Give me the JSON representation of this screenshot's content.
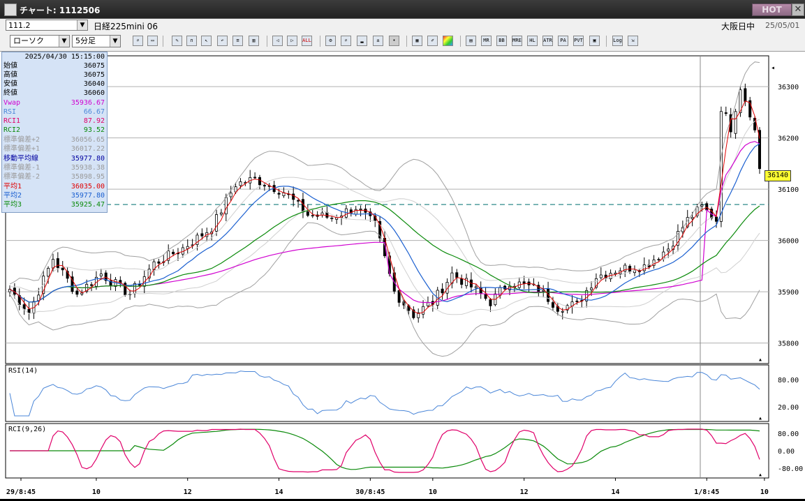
{
  "window": {
    "title": "チャート: 1112506",
    "hot_label": "HOT",
    "close_glyph": "✕"
  },
  "infobar": {
    "code": "111.2",
    "symbol": "日経225mini 06",
    "session": "大阪日中",
    "date": "25/05/01"
  },
  "toolbar": {
    "chart_type": "ローソク",
    "interval": "5分足",
    "button_labels": {
      "all": "ALL",
      "mr": "MR",
      "bb": "BB",
      "mre": "MRE",
      "hl": "HL",
      "atr": "ATR",
      "para": "PA RA",
      "pvt": "PVT",
      "log": "Log"
    }
  },
  "legend": {
    "timestamp": "2025/04/30  15:15:00",
    "rows": [
      {
        "k": "始値",
        "v": "36075",
        "color": "#000000"
      },
      {
        "k": "高値",
        "v": "36075",
        "color": "#000000"
      },
      {
        "k": "安値",
        "v": "36040",
        "color": "#000000"
      },
      {
        "k": "終値",
        "v": "36060",
        "color": "#000000"
      },
      {
        "k": "Vwap",
        "v": "35936.67",
        "color": "#d000d0"
      },
      {
        "k": "RSI",
        "v": "66.67",
        "color": "#4a86d8"
      },
      {
        "k": "RCI1",
        "v": "87.92",
        "color": "#e0006a"
      },
      {
        "k": "RCI2",
        "v": "93.52",
        "color": "#0a8a0a"
      },
      {
        "k": "標準偏差+2",
        "v": "36056.65",
        "color": "#9a9a9a"
      },
      {
        "k": "標準偏差+1",
        "v": "36017.22",
        "color": "#9a9a9a"
      },
      {
        "k": "移動平均線",
        "v": "35977.80",
        "color": "#0000a0"
      },
      {
        "k": "標準偏差-1",
        "v": "35938.38",
        "color": "#9a9a9a"
      },
      {
        "k": "標準偏差-2",
        "v": "35898.95",
        "color": "#9a9a9a"
      },
      {
        "k": "平均1",
        "v": "36035.00",
        "color": "#e00000"
      },
      {
        "k": "平均2",
        "v": "35977.80",
        "color": "#1a5fd0"
      },
      {
        "k": "平均3",
        "v": "35925.47",
        "color": "#0a8a0a"
      }
    ]
  },
  "price_axis": {
    "labels": [
      "36300",
      "36200",
      "36100",
      "36000",
      "35900",
      "35800"
    ],
    "last_price": "36140"
  },
  "rsi_pane": {
    "label": "RSI(14)",
    "axis_labels": [
      "80.00",
      "20.00"
    ]
  },
  "rci_pane": {
    "label": "RCI(9,26)",
    "axis_labels": [
      "80.00",
      "0.00",
      "-80.00"
    ]
  },
  "time_axis": {
    "labels": [
      "29/8:45",
      "10",
      "12",
      "14",
      "30/8:45",
      "10",
      "12",
      "14",
      "1/8:45",
      "10"
    ]
  },
  "chart_data": {
    "type": "candlestick",
    "symbol": "日経225mini 06",
    "interval": "5分足",
    "ylim": [
      35760,
      36360
    ],
    "last": 36140,
    "dashed_line": 36070,
    "colors": {
      "up": "#ffffff",
      "down": "#000000",
      "ma1": "#e00000",
      "ma2": "#1a5fd0",
      "ma3": "#0a8a0a",
      "vwap": "#d000d0",
      "bb": "#a0a0a0",
      "rsi": "#4a86d8",
      "rci1": "#e0006a",
      "rci2": "#0a8a0a"
    }
  }
}
